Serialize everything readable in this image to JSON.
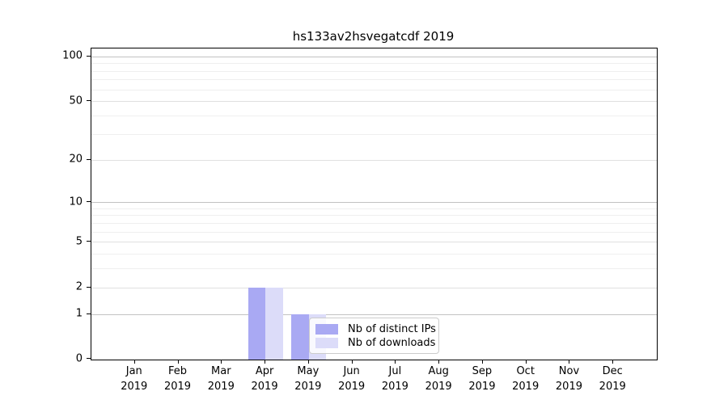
{
  "chart_data": {
    "type": "bar",
    "title": "hs133av2hsvegatcdf 2019",
    "categories": [
      "Jan",
      "Feb",
      "Mar",
      "Apr",
      "May",
      "Jun",
      "Jul",
      "Aug",
      "Sep",
      "Oct",
      "Nov",
      "Dec"
    ],
    "x_sublabel_year": "2019",
    "series": [
      {
        "name": "Nb of distinct IPs",
        "color": "#a9a9f3",
        "values": [
          0,
          0,
          0,
          2,
          1,
          0,
          0,
          0,
          0,
          0,
          0,
          0
        ]
      },
      {
        "name": "Nb of downloads",
        "color": "#dcdcf9",
        "values": [
          0,
          0,
          0,
          2,
          1,
          0,
          0,
          0,
          0,
          0,
          0,
          0
        ]
      }
    ],
    "yscale": "log1p",
    "ylim": [
      0,
      113
    ],
    "y_major_ticks": [
      0,
      1,
      2,
      5,
      10,
      20,
      50,
      100
    ],
    "y_decade_gridlines": [
      1,
      10,
      100
    ],
    "y_mid_gridlines": [
      2,
      5,
      20,
      50
    ],
    "y_minor_gridlines": [
      3,
      4,
      6,
      7,
      8,
      9,
      30,
      40,
      60,
      70,
      80,
      90
    ],
    "grid": "horizontal",
    "legend_position": "lower-center",
    "colors": {
      "decade_grid": "#c2c2c2",
      "mid_grid": "#e0e0e0",
      "minor_grid": "#efefef",
      "axis": "#000000",
      "legend_border": "#cccccc",
      "text": "#000000",
      "background": "#ffffff"
    }
  }
}
